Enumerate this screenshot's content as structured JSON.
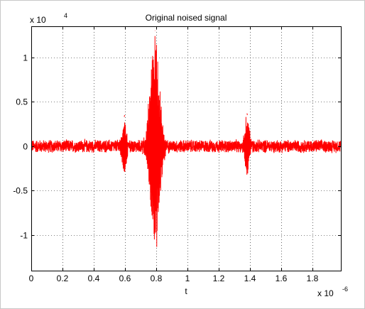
{
  "chart_data": {
    "type": "line",
    "title": "Original noised signal",
    "xlabel": "t",
    "ylabel": "",
    "x_multiplier": "x 10",
    "x_multiplier_exponent": "-6",
    "y_multiplier": "x 10",
    "y_multiplier_exponent": "4",
    "xlim": [
      0,
      1.98
    ],
    "ylim": [
      -1.4,
      1.35
    ],
    "xticks": [
      0,
      0.2,
      0.4,
      0.6,
      0.8,
      1.0,
      1.2,
      1.4,
      1.6,
      1.8
    ],
    "xtick_labels": [
      "0",
      "0.2",
      "0.4",
      "0.6",
      "0.8",
      "1",
      "1.2",
      "1.4",
      "1.6",
      "1.8"
    ],
    "yticks": [
      -1,
      -0.5,
      0,
      0.5,
      1
    ],
    "ytick_labels": [
      "-1",
      "-0.5",
      "0",
      "0.5",
      "1"
    ],
    "grid": true,
    "grid_style": "dotted",
    "series": [
      {
        "color": "#ff0000",
        "noise_amplitude": 0.08,
        "bursts": [
          {
            "center": 0.595,
            "peak_pos": 0.33,
            "peak_neg": -0.35,
            "width": 0.018
          },
          {
            "center": 0.79,
            "peak_pos": 1.3,
            "peak_neg": -1.3,
            "width": 0.04
          },
          {
            "center": 1.38,
            "peak_pos": 0.37,
            "peak_neg": -0.35,
            "width": 0.018
          }
        ]
      }
    ]
  }
}
